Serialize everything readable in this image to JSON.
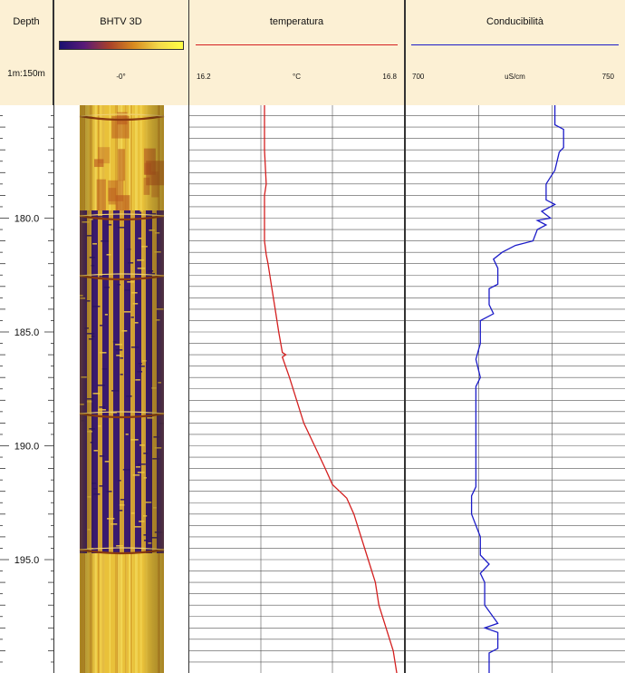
{
  "header": {
    "depth": {
      "title": "Depth",
      "scale": "1m:150m"
    },
    "image": {
      "title": "BHTV 3D",
      "scale_label": "-0°"
    },
    "temperature": {
      "title": "temperatura",
      "min_label": "16.2",
      "unit": "°C",
      "max_label": "16.8"
    },
    "conductivity": {
      "title": "Conducibilità",
      "min_label": "700",
      "unit": "uS/cm",
      "max_label": "750"
    }
  },
  "colors": {
    "header_bg": "#fcf0d4",
    "temperature_line": "#d42020",
    "conductivity_line": "#1c1cc8",
    "grid": "#555555",
    "image_ramp": [
      "#1a1070",
      "#5a1a78",
      "#a8402a",
      "#d88a20",
      "#f2d84a",
      "#ffff44"
    ]
  },
  "chart_data": [
    {
      "type": "line",
      "track": "temperature",
      "title": "temperatura",
      "xlabel": "°C",
      "ylabel": "Depth",
      "xlim": [
        16.2,
        16.8
      ],
      "ylim": [
        175,
        200
      ],
      "y_tick_labels": [
        "180.0",
        "185.0",
        "190.0",
        "195.0"
      ],
      "grid": true,
      "series": [
        {
          "depth": [
            175.0,
            177.0,
            178.5,
            179.0,
            180.0,
            181.0,
            181.6,
            182.0,
            183.0,
            184.0,
            185.0,
            185.9,
            186.0,
            186.1,
            187.0,
            188.0,
            189.0,
            190.0,
            191.0,
            191.7,
            192.0,
            192.3,
            193.0,
            194.0,
            195.0,
            196.0,
            197.0,
            198.0,
            199.0,
            200.0
          ],
          "values": [
            16.41,
            16.41,
            16.415,
            16.41,
            16.41,
            16.41,
            16.415,
            16.42,
            16.43,
            16.44,
            16.45,
            16.46,
            16.47,
            16.46,
            16.48,
            16.5,
            16.52,
            16.55,
            16.58,
            16.6,
            16.62,
            16.64,
            16.66,
            16.68,
            16.7,
            16.72,
            16.73,
            16.75,
            16.77,
            16.78
          ]
        }
      ]
    },
    {
      "type": "line",
      "track": "conductivity",
      "title": "Conducibilità",
      "xlabel": "uS/cm",
      "ylabel": "Depth",
      "xlim": [
        700,
        750
      ],
      "ylim": [
        175,
        200
      ],
      "grid": true,
      "series": [
        {
          "depth": [
            175.0,
            175.9,
            176.1,
            176.9,
            177.1,
            177.9,
            178.2,
            178.5,
            179.2,
            179.4,
            179.7,
            180.0,
            180.1,
            180.3,
            180.5,
            181.0,
            181.2,
            181.5,
            181.8,
            182.2,
            182.9,
            183.1,
            183.8,
            184.2,
            184.5,
            185.5,
            186.2,
            187.0,
            187.4,
            188.0,
            189.0,
            190.0,
            191.0,
            191.8,
            192.2,
            193.0,
            194.0,
            194.8,
            195.2,
            195.6,
            196.0,
            197.0,
            197.8,
            198.0,
            198.2,
            198.9,
            199.1,
            200.0
          ],
          "values": [
            734,
            734,
            736,
            736,
            735,
            734,
            733,
            732,
            732,
            734,
            731,
            733,
            730,
            732,
            730,
            729,
            725,
            722,
            720,
            721,
            721,
            719,
            719,
            720,
            717,
            717,
            716,
            717,
            716,
            716,
            716,
            716,
            716,
            716,
            715,
            715,
            717,
            717,
            719,
            717,
            718,
            718,
            721,
            718,
            721,
            721,
            719,
            719
          ]
        }
      ]
    }
  ]
}
